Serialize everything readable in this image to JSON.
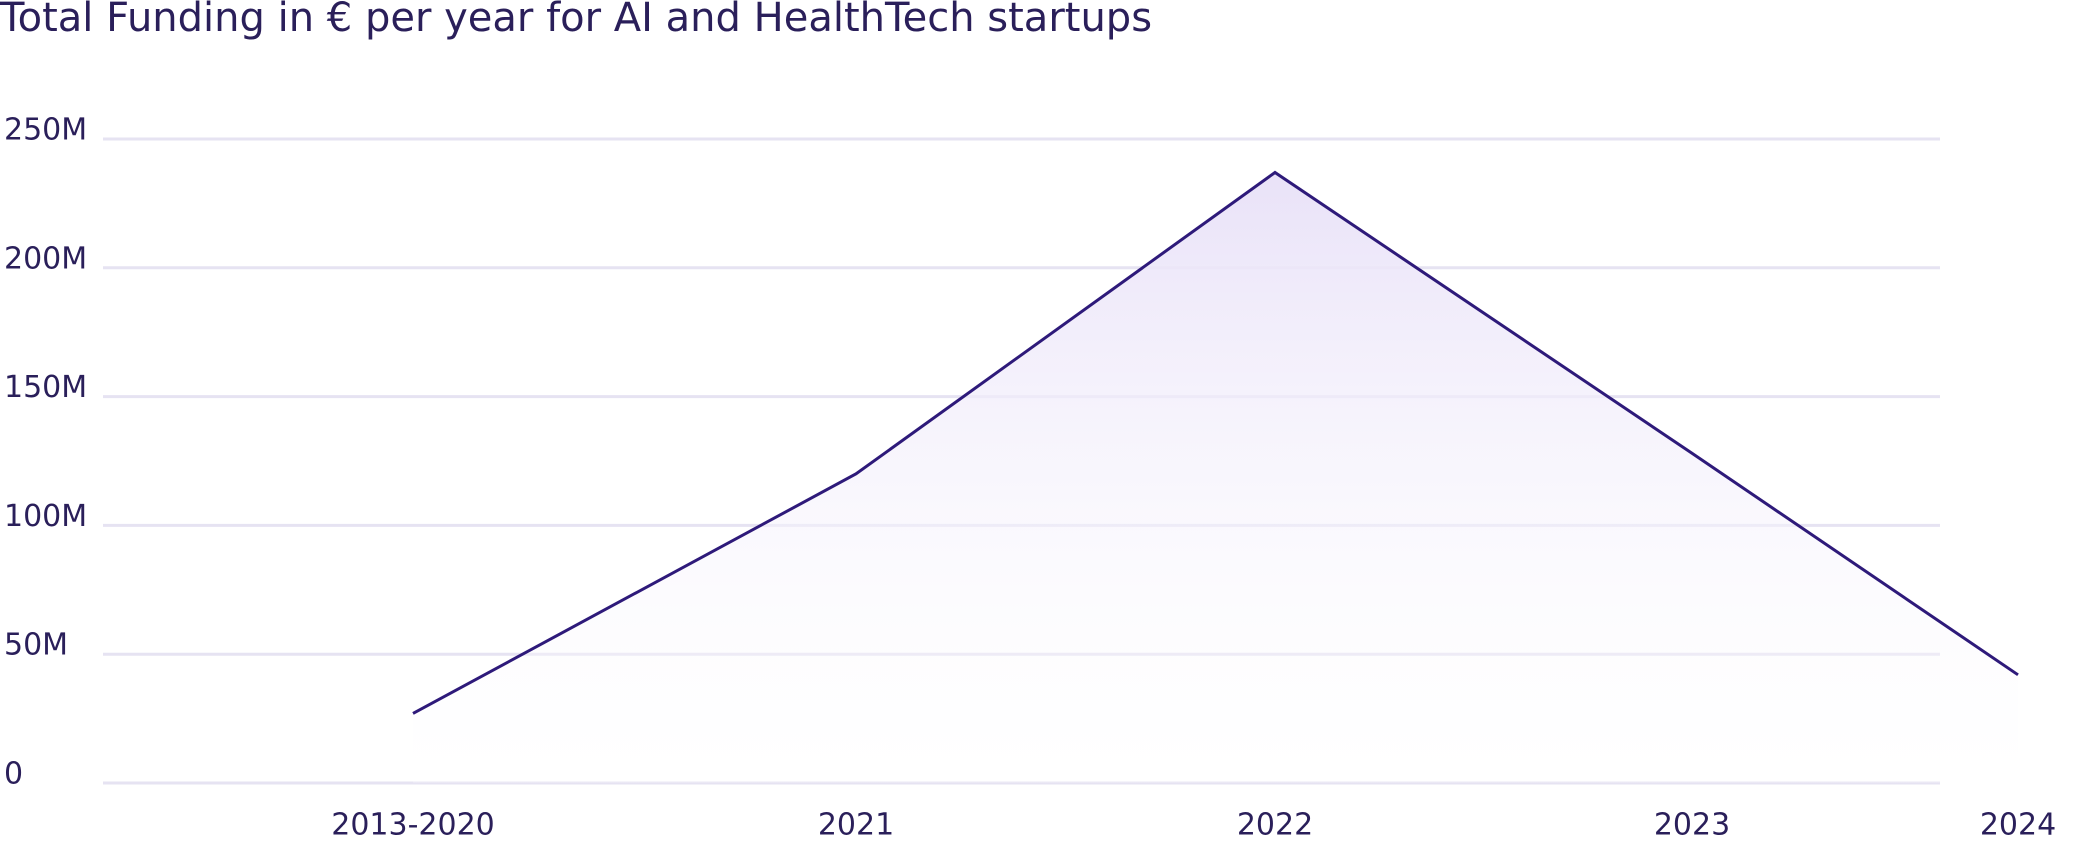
{
  "chart_data": {
    "type": "area-line",
    "title": "Total Funding in € per year for AI and HealthTech startups",
    "categories": [
      "2013-2020",
      "2021",
      "2022",
      "2023",
      "2024"
    ],
    "values": [
      27000000,
      120000000,
      237000000,
      128000000,
      42000000
    ],
    "color": "#2e1a7a",
    "fill": "#e9e2f8",
    "ylim": [
      0,
      250000000
    ],
    "yticks": [
      0,
      {
        "value": 50000000,
        "label": "50M"
      },
      {
        "value": 100000000,
        "label": "100M"
      },
      {
        "value": 150000000,
        "label": "150M"
      },
      {
        "value": 200000000,
        "label": "200M"
      },
      {
        "value": 250000000,
        "label": "250M"
      }
    ],
    "grid": true
  }
}
